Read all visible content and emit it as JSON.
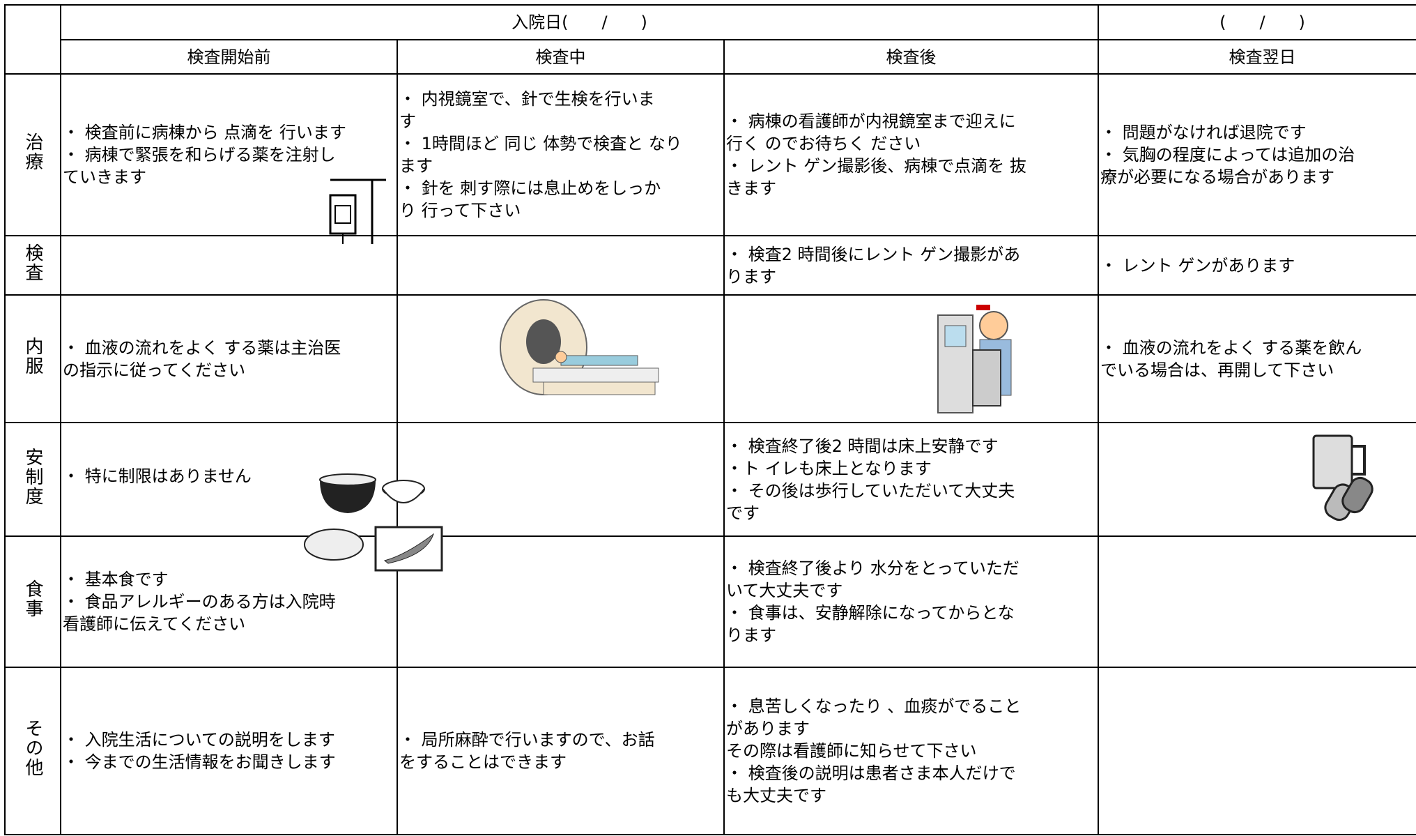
{
  "header": {
    "admission_day": "入院日(　　/　　)",
    "next_day_date": "(　　/　　)",
    "columns": [
      "検査開始前",
      "検査中",
      "検査後",
      "検査翌日"
    ]
  },
  "rows": [
    {
      "label": "治療",
      "cells": [
        [
          "・ 検査前に病棟から 点滴を 行います",
          "・ 病棟で緊張を和らげる薬を注射し",
          "ていきます"
        ],
        [
          "・ 内視鏡室で、針で生検を行いま",
          "す",
          "・ 1時間ほど 同じ 体勢で検査と なり",
          "ます",
          "・ 針を 刺す際には息止めをしっか",
          "り 行って下さい"
        ],
        [
          "・ 病棟の看護師が内視鏡室まで迎えに",
          "行く のでお待ちく ださい",
          "・ レント ゲン撮影後、病棟で点滴を 抜",
          "きます"
        ],
        [
          "・ 問題がなければ退院です",
          "・ 気胸の程度によっては追加の治",
          "療が必要になる場合があります"
        ]
      ]
    },
    {
      "label": "検査",
      "cells": [
        [],
        [],
        [
          "・ 検査2 時間後にレント ゲン撮影があ",
          "ります"
        ],
        [
          "・ レント ゲンがあります"
        ]
      ]
    },
    {
      "label": "内服",
      "cells": [
        [
          "・ 血液の流れをよく する薬は主治医",
          "の指示に従ってください"
        ],
        [],
        [],
        [
          "・ 血液の流れをよく する薬を飲ん",
          "でいる場合は、再開して下さい"
        ]
      ]
    },
    {
      "label": "安制度",
      "cells": [
        [
          "・ 特に制限はありません"
        ],
        [],
        [
          "・ 検査終了後2 時間は床上安静です",
          "・ト イレも床上となります",
          "・ その後は歩行していただいて大丈夫",
          "です"
        ],
        []
      ]
    },
    {
      "label": "食事",
      "cells": [
        [
          "・ 基本食です",
          "・ 食品アレルギーのある方は入院時",
          "看護師に伝えてください"
        ],
        [],
        [
          "・ 検査終了後より 水分をとっていただ",
          "いて大丈夫です",
          "・ 食事は、安静解除になってからとな",
          "ります"
        ],
        []
      ]
    },
    {
      "label": "その他",
      "cells": [
        [
          "・ 入院生活についての説明をします",
          "・ 今までの生活情報をお聞きします"
        ],
        [
          "・ 局所麻酔で行いますので、お話",
          "をすることはできます"
        ],
        [
          "・ 息苦しくなったり 、血痰がでること",
          "があります",
          "その際は看護師に知らせて下さい",
          "・ 検査後の説明は患者さま本人だけで",
          "も大丈夫です"
        ],
        []
      ]
    }
  ]
}
